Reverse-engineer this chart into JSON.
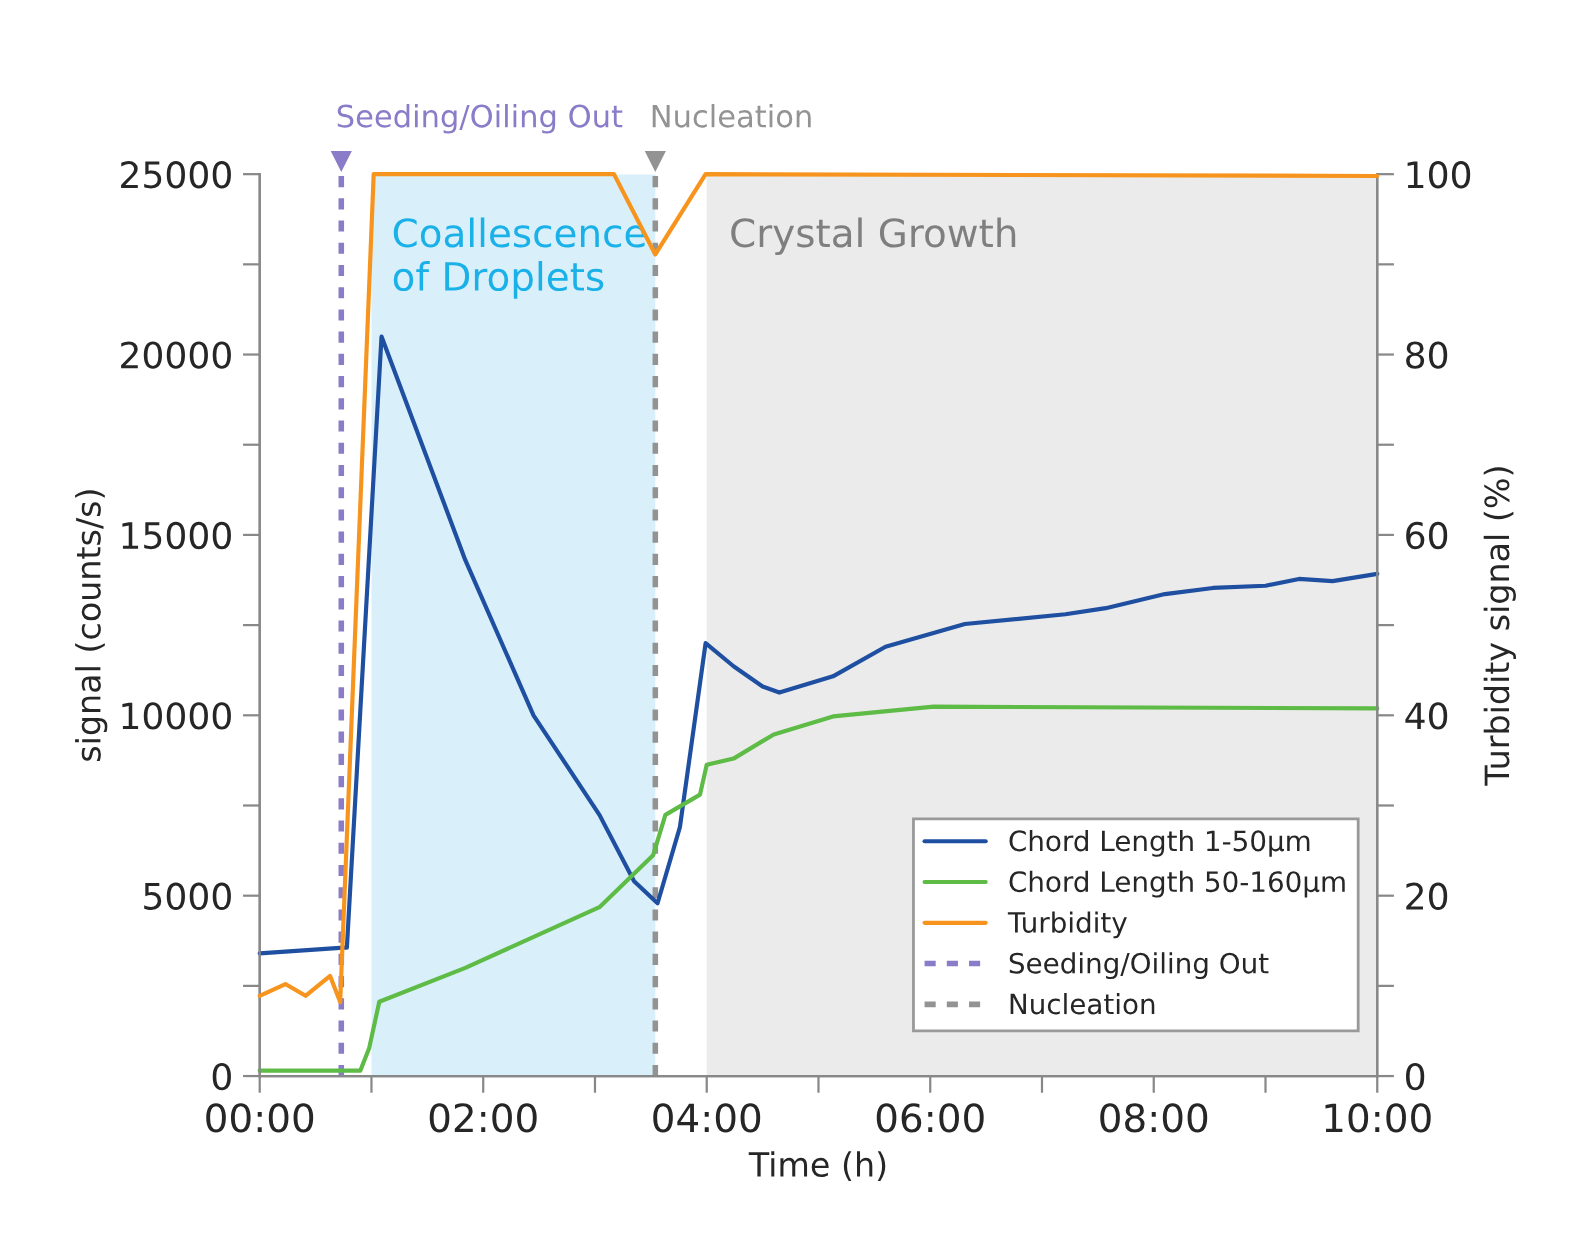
{
  "chart_data": {
    "type": "line",
    "xlabel": "Time (h)",
    "ylabel": "signal (counts/s)",
    "y2label": "Turbidity signal (%)",
    "xlim": [
      0,
      10
    ],
    "xticks": [
      {
        "value": 0,
        "label": "00:00"
      },
      {
        "value": 1,
        "label": null
      },
      {
        "value": 2,
        "label": "02:00"
      },
      {
        "value": 3,
        "label": null
      },
      {
        "value": 4,
        "label": "04:00"
      },
      {
        "value": 5,
        "label": null
      },
      {
        "value": 6,
        "label": "06:00"
      },
      {
        "value": 7,
        "label": null
      },
      {
        "value": 8,
        "label": "08:00"
      },
      {
        "value": 9,
        "label": null
      },
      {
        "value": 10,
        "label": "10:00"
      }
    ],
    "ylim": [
      0,
      25000
    ],
    "yticks": [
      0,
      {
        "value": 2500,
        "label": null
      },
      5000,
      {
        "value": 7500,
        "label": null
      },
      10000,
      {
        "value": 12500,
        "label": null
      },
      15000,
      {
        "value": 17500,
        "label": null
      },
      20000,
      {
        "value": 22500,
        "label": null
      },
      25000
    ],
    "y2lim": [
      0,
      100
    ],
    "y2ticks": [
      0,
      {
        "value": 10,
        "label": null
      },
      20,
      {
        "value": 30,
        "label": null
      },
      40,
      {
        "value": 50,
        "label": null
      },
      60,
      {
        "value": 70,
        "label": null
      },
      80,
      {
        "value": 90,
        "label": null
      },
      100
    ],
    "series": [
      {
        "name": "Chord Length 1-50µm",
        "color": "#1f4fa0",
        "x": [
          0,
          0.75,
          0.78,
          1.09,
          1.84,
          2.45,
          3.04,
          3.35,
          3.56,
          3.76,
          3.99,
          4.24,
          4.5,
          4.65,
          5.13,
          5.6,
          6.31,
          7.21,
          7.57,
          8.1,
          8.53,
          9.0,
          9.3,
          9.6,
          10
        ],
        "values": [
          3400,
          3560,
          3560,
          20500,
          14300,
          10000,
          7240,
          5400,
          4790,
          6900,
          12000,
          11360,
          10800,
          10630,
          11080,
          11900,
          12530,
          12800,
          12970,
          13360,
          13530,
          13590,
          13780,
          13720,
          13920
        ]
      },
      {
        "name": "Chord Length 50-160µm",
        "color": "#5dbb46",
        "x": [
          0,
          0.9,
          0.98,
          1.07,
          1.84,
          3.04,
          3.52,
          3.63,
          3.94,
          4.0,
          4.24,
          4.6,
          5.13,
          6.03,
          10
        ],
        "values": [
          150,
          150,
          780,
          2060,
          3000,
          4680,
          6120,
          7240,
          7800,
          8630,
          8800,
          9470,
          9970,
          10240,
          10190
        ]
      },
      {
        "name": "Turbidity",
        "color": "#f7941d",
        "axis": "y2",
        "x": [
          0,
          0.23,
          0.41,
          0.63,
          0.72,
          1.02,
          3.17,
          3.54,
          3.99,
          10
        ],
        "values": [
          8.9,
          10.2,
          8.9,
          11.1,
          8.2,
          100,
          100,
          91.1,
          100,
          99.8
        ]
      }
    ],
    "ref_lines": [
      {
        "axis": "x",
        "value": 0.73,
        "label": "Seeding/Oiling Out",
        "color": "#8a7cc8",
        "line_style": "dotted"
      },
      {
        "axis": "x",
        "value": 3.54,
        "label": "Nucleation",
        "color": "#939393",
        "line_style": "dotted"
      }
    ],
    "bands": [
      {
        "axis": "x",
        "from": 1.0,
        "to": 3.54,
        "label": "Coallescence\nof Droplets",
        "color": "#d9f0fa"
      },
      {
        "axis": "x",
        "from": 4.0,
        "to": 10,
        "label": "Crystal Growth",
        "color": "#ebebeb"
      }
    ],
    "legend": "bottom right",
    "grid": false,
    "marker": "none",
    "line_style": "solid"
  }
}
